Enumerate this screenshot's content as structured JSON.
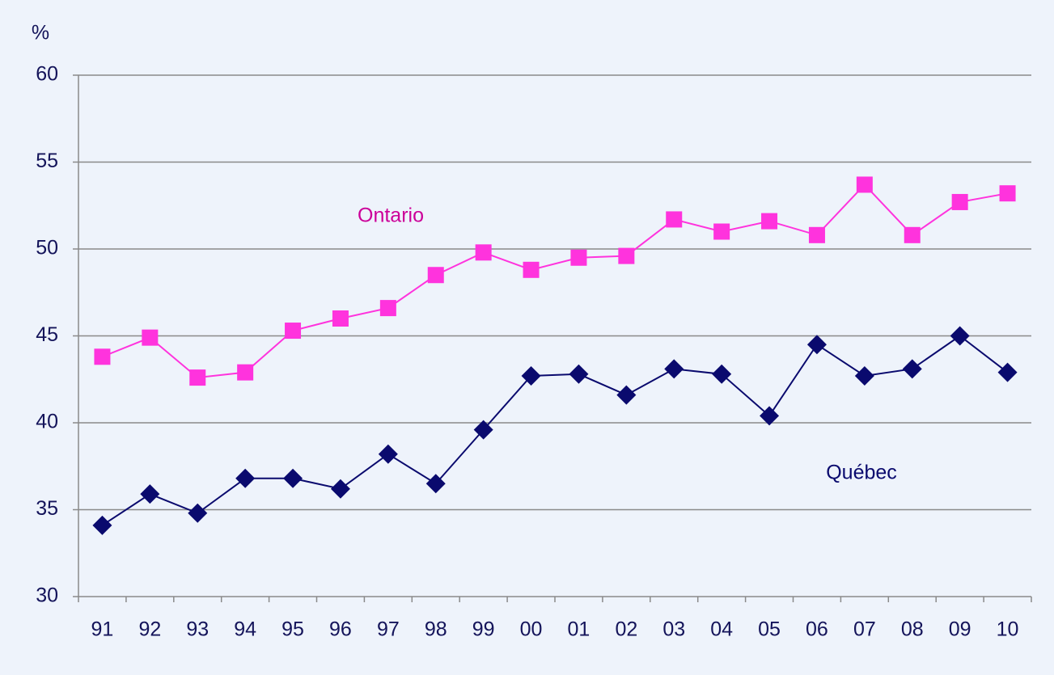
{
  "chart_data": {
    "type": "line",
    "y_label": "%",
    "categories": [
      "91",
      "92",
      "93",
      "94",
      "95",
      "96",
      "97",
      "98",
      "99",
      "00",
      "01",
      "02",
      "03",
      "04",
      "05",
      "06",
      "07",
      "08",
      "09",
      "10"
    ],
    "series": [
      {
        "name": "Ontario",
        "color": "#ff33dd",
        "label_color": "#cc0099",
        "marker": "square",
        "values": [
          43.8,
          44.9,
          42.6,
          42.9,
          45.3,
          46.0,
          46.6,
          48.5,
          49.8,
          48.8,
          49.5,
          49.6,
          51.7,
          51.0,
          51.6,
          50.8,
          53.7,
          50.8,
          52.7,
          53.2
        ]
      },
      {
        "name": "Québec",
        "color": "#0a0a6e",
        "label_color": "#0a0a6e",
        "marker": "diamond",
        "values": [
          34.1,
          35.9,
          34.8,
          36.8,
          36.8,
          36.2,
          38.2,
          36.5,
          39.6,
          42.7,
          42.8,
          41.6,
          43.1,
          42.8,
          40.4,
          44.5,
          42.7,
          43.1,
          45.0,
          42.9
        ]
      }
    ],
    "ylim": [
      30,
      60
    ],
    "yticks": [
      30,
      35,
      40,
      45,
      50,
      55,
      60
    ],
    "grid": true
  }
}
